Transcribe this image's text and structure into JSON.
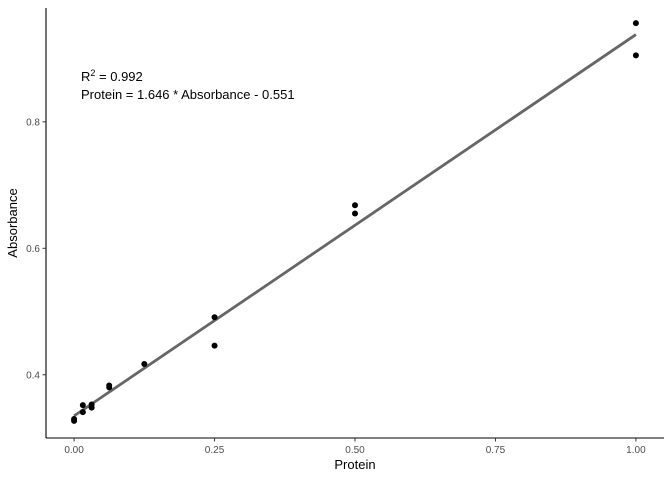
{
  "chart_data": {
    "type": "scatter",
    "xlabel": "Protein",
    "ylabel": "Absorbance",
    "xlim": [
      -0.05,
      1.05
    ],
    "ylim": [
      0.3,
      0.98
    ],
    "xticks": [
      0.0,
      0.25,
      0.5,
      0.75,
      1.0
    ],
    "xtick_labels": [
      "0.00",
      "0.25",
      "0.50",
      "0.75",
      "1.00"
    ],
    "yticks": [
      0.4,
      0.6,
      0.8
    ],
    "ytick_labels": [
      "0.4",
      "0.6",
      "0.8"
    ],
    "grid": false,
    "points": [
      {
        "x": 0.0,
        "y": 0.327
      },
      {
        "x": 0.0,
        "y": 0.33
      },
      {
        "x": 0.0156,
        "y": 0.341
      },
      {
        "x": 0.0156,
        "y": 0.352
      },
      {
        "x": 0.03125,
        "y": 0.348
      },
      {
        "x": 0.03125,
        "y": 0.353
      },
      {
        "x": 0.0625,
        "y": 0.38
      },
      {
        "x": 0.0625,
        "y": 0.383
      },
      {
        "x": 0.125,
        "y": 0.417
      },
      {
        "x": 0.25,
        "y": 0.491
      },
      {
        "x": 0.25,
        "y": 0.446
      },
      {
        "x": 0.5,
        "y": 0.668
      },
      {
        "x": 0.5,
        "y": 0.655
      },
      {
        "x": 1.0,
        "y": 0.956
      },
      {
        "x": 1.0,
        "y": 0.905
      }
    ],
    "fit_line": {
      "x": [
        0.0,
        1.0
      ],
      "y": [
        0.335,
        0.938
      ],
      "color": "#666666"
    },
    "annotation": {
      "r2_prefix": "R",
      "r2_sup": "2",
      "r2_value": " = 0.992",
      "equation": "Protein = 1.646 * Absorbance - 0.551"
    },
    "colors": {
      "points": "#000000",
      "axis": "#000000",
      "tick_text": "#4d4d4d"
    }
  }
}
